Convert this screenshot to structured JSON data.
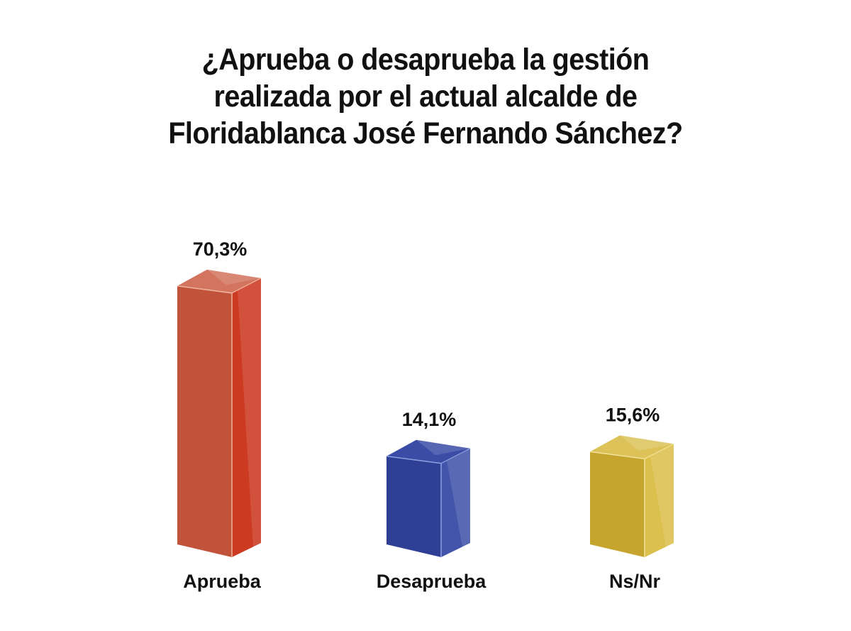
{
  "chart_data": {
    "type": "bar",
    "style": "3d",
    "title_lines": [
      "¿Aprueba o desaprueba la gestión",
      "realizada por el actual alcalde de",
      "Floridablanca José Fernando Sánchez?"
    ],
    "categories": [
      "Aprueba",
      "Desaprueba",
      "Ns/Nr"
    ],
    "values": [
      70.3,
      14.1,
      15.6
    ],
    "value_labels": [
      "70,3%",
      "14,1%",
      "15,6%"
    ],
    "unit": "%",
    "xlabel": "",
    "ylabel": "",
    "grid": false,
    "legend": "none",
    "colors": [
      {
        "front": "#c2533b",
        "side": "#cc3a22",
        "top": "#d3745e",
        "edge": "#f0b59e"
      },
      {
        "front": "#2f3f95",
        "side": "#4255aa",
        "top": "#3a4ca6",
        "edge": "#8fa0e0"
      },
      {
        "front": "#c6a52f",
        "side": "#dcc04e",
        "top": "#dcc258",
        "edge": "#f2e29a"
      }
    ]
  }
}
